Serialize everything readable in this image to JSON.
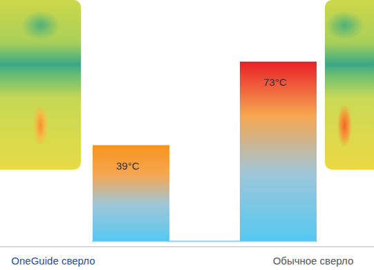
{
  "chart_data": {
    "type": "bar",
    "categories": [
      "OneGuide сверло",
      "Обычное сверло"
    ],
    "values": [
      39,
      73
    ],
    "value_labels": [
      "39°C",
      "73°C"
    ],
    "colors": [
      "#f7941d",
      "#e8202a"
    ],
    "ylim": [
      0,
      73
    ],
    "yticks": [],
    "tick_labels": false,
    "data_labels": true,
    "grid": false
  }
}
